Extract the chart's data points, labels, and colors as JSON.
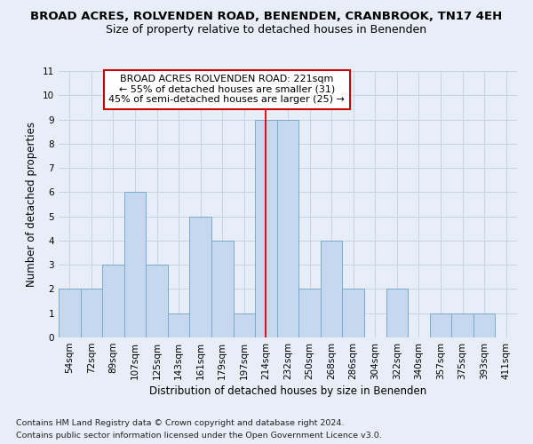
{
  "title": "BROAD ACRES, ROLVENDEN ROAD, BENENDEN, CRANBROOK, TN17 4EH",
  "subtitle": "Size of property relative to detached houses in Benenden",
  "xlabel": "Distribution of detached houses by size in Benenden",
  "ylabel": "Number of detached properties",
  "categories": [
    "54sqm",
    "72sqm",
    "89sqm",
    "107sqm",
    "125sqm",
    "143sqm",
    "161sqm",
    "179sqm",
    "197sqm",
    "214sqm",
    "232sqm",
    "250sqm",
    "268sqm",
    "286sqm",
    "304sqm",
    "322sqm",
    "340sqm",
    "357sqm",
    "375sqm",
    "393sqm",
    "411sqm"
  ],
  "values": [
    2,
    2,
    3,
    6,
    3,
    1,
    5,
    4,
    1,
    9,
    9,
    2,
    4,
    2,
    0,
    2,
    0,
    1,
    1,
    1,
    0
  ],
  "bar_color": "#c5d8ee",
  "bar_edge_color": "#7aaad0",
  "grid_color": "#c8d4e4",
  "background_color": "#e8eef8",
  "property_line_x": 9.0,
  "property_line_color": "#dd0000",
  "annotation_text": "BROAD ACRES ROLVENDEN ROAD: 221sqm\n← 55% of detached houses are smaller (31)\n45% of semi-detached houses are larger (25) →",
  "annotation_box_facecolor": "#ffffff",
  "annotation_box_edgecolor": "#cc0000",
  "ylim": [
    0,
    11
  ],
  "yticks": [
    0,
    1,
    2,
    3,
    4,
    5,
    6,
    7,
    8,
    9,
    10,
    11
  ],
  "footnote1": "Contains HM Land Registry data © Crown copyright and database right 2024.",
  "footnote2": "Contains public sector information licensed under the Open Government Licence v3.0.",
  "title_fontsize": 9.5,
  "subtitle_fontsize": 9,
  "ylabel_fontsize": 8.5,
  "xlabel_fontsize": 8.5,
  "tick_fontsize": 7.5,
  "annotation_fontsize": 8,
  "footnote_fontsize": 6.8
}
